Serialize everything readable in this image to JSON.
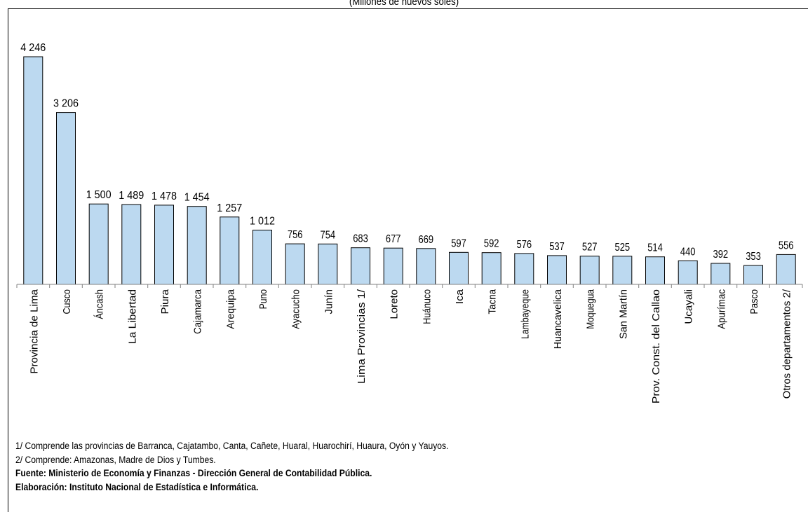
{
  "chart_data": {
    "type": "bar",
    "title": "",
    "subtitle": "(Millones de nuevos soles)",
    "xlabel": "",
    "ylabel": "",
    "categories": [
      "Provincia de Lima",
      "Cusco",
      "Áncash",
      "La Libertad",
      "Piura",
      "Cajamarca",
      "Arequipa",
      "Puno",
      "Ayacucho",
      "Junín",
      "Lima Provincias  1/",
      "Loreto",
      "Huánuco",
      "Ica",
      "Tacna",
      "Lambayeque",
      "Huancavelica",
      "Moquegua",
      "San Martín",
      "Prov. Const. del Callao",
      "Ucayali",
      "Apurímac",
      "Pasco",
      "Otros departamentos 2/"
    ],
    "values": [
      4246,
      3206,
      1500,
      1489,
      1478,
      1454,
      1257,
      1012,
      756,
      754,
      683,
      677,
      669,
      597,
      592,
      576,
      537,
      527,
      525,
      514,
      440,
      392,
      353,
      556
    ],
    "value_labels": [
      "4 246",
      "3 206",
      "1 500",
      "1 489",
      "1 478",
      "1 454",
      "1 257",
      "1 012",
      "756",
      "754",
      "683",
      "677",
      "669",
      "597",
      "592",
      "576",
      "537",
      "527",
      "525",
      "514",
      "440",
      "392",
      "353",
      "556"
    ],
    "grid": false,
    "legend": "none",
    "bar_color": "#bcd9f0",
    "bar_edge_color": "#000000"
  },
  "notes": {
    "note1": "1/ Comprende las provincias de Barranca, Cajatambo, Canta, Cañete, Huaral, Huarochirí, Huaura, Oyón y Yauyos.",
    "note2": "2/ Comprende: Amazonas, Madre de Dios y Tumbes.",
    "source": "Fuente: Ministerio de Economía y Finanzas - Dirección General de Contabilidad Pública.",
    "elaboration": "Elaboración: Instituto Nacional de Estadística e Informática."
  }
}
